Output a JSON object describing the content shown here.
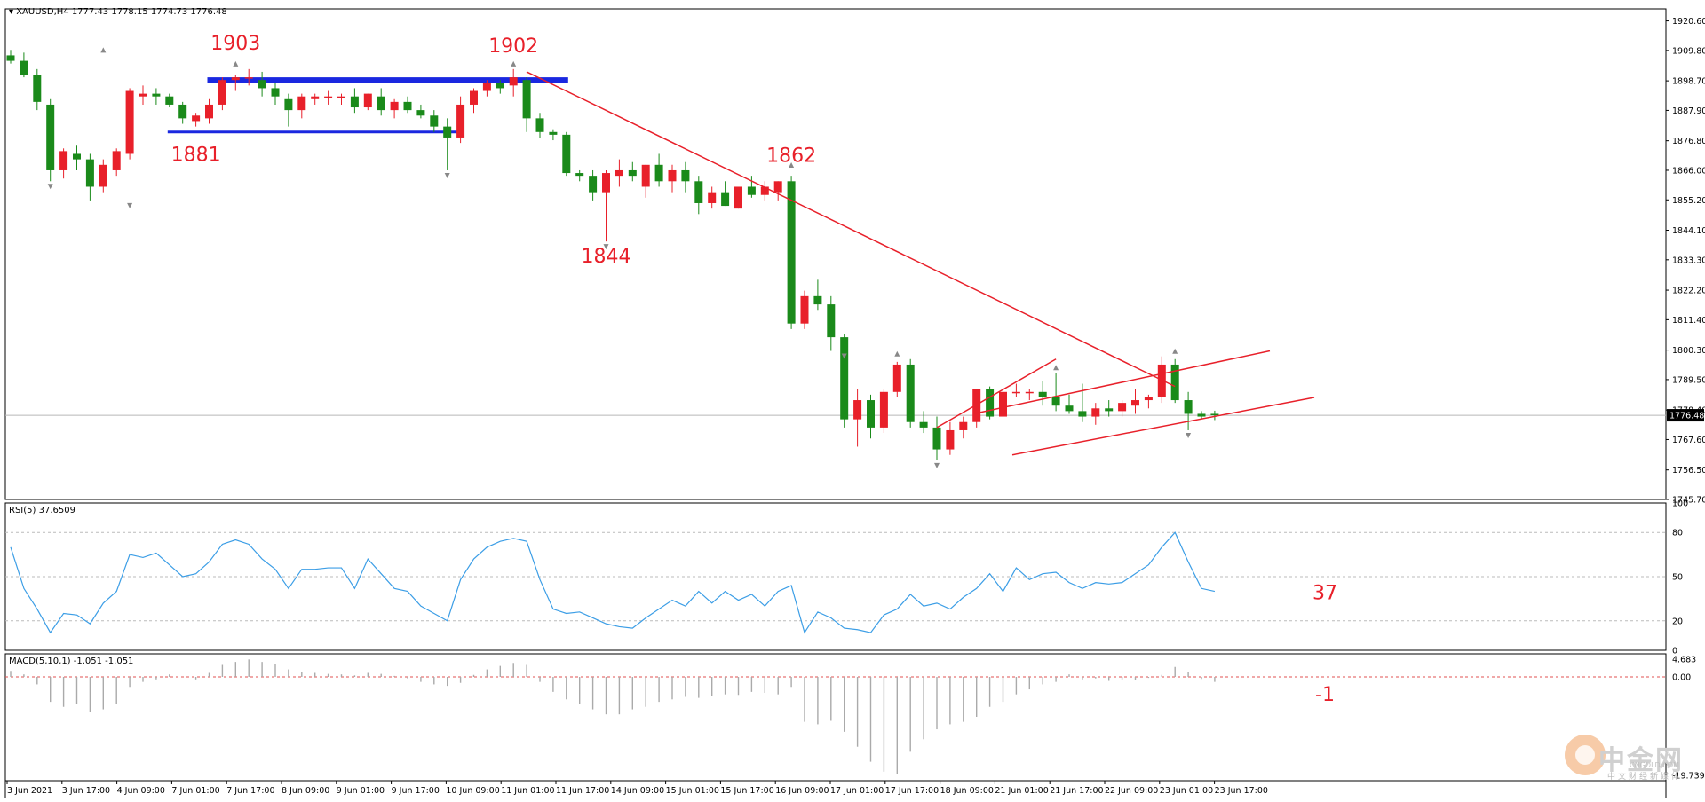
{
  "header": {
    "symbol": "XAUUSD,H4",
    "ohlc": "1777.43 1778.15 1774.73 1776.48"
  },
  "colors": {
    "bull": "#e8202a",
    "bear": "#1a8a1a",
    "resistance": "#1a28e0",
    "trend": "#e8202a",
    "indicator": "#3c9ee6",
    "annotation": "#e8202a"
  },
  "chart_data": [
    {
      "type": "candlestick",
      "title": "XAUUSD,H4",
      "ylim": [
        1745.7,
        1925
      ],
      "y_ticks": [
        "1920.60",
        "1909.80",
        "1898.70",
        "1887.90",
        "1876.80",
        "1866.00",
        "1855.20",
        "1844.10",
        "1833.30",
        "1822.20",
        "1811.40",
        "1800.30",
        "1789.50",
        "1778.40",
        "1767.60",
        "1756.50",
        "1745.70"
      ],
      "current_price_label": "1776.48",
      "current_price": 1776.48,
      "x_ticks": [
        "3 Jun 2021",
        "3 Jun 17:00",
        "4 Jun 09:00",
        "7 Jun 01:00",
        "7 Jun 17:00",
        "8 Jun 09:00",
        "9 Jun 01:00",
        "9 Jun 17:00",
        "10 Jun 09:00",
        "11 Jun 01:00",
        "11 Jun 17:00",
        "14 Jun 09:00",
        "15 Jun 01:00",
        "15 Jun 17:00",
        "16 Jun 09:00",
        "17 Jun 01:00",
        "17 Jun 17:00",
        "18 Jun 09:00",
        "21 Jun 01:00",
        "21 Jun 17:00",
        "22 Jun 09:00",
        "23 Jun 01:00",
        "23 Jun 17:00"
      ],
      "candles": [
        [
          1908,
          1910,
          1905,
          1906
        ],
        [
          1906,
          1909,
          1900,
          1901
        ],
        [
          1901,
          1903,
          1888,
          1891
        ],
        [
          1890,
          1892,
          1862,
          1866
        ],
        [
          1866,
          1874,
          1863,
          1873
        ],
        [
          1872,
          1875,
          1866,
          1870
        ],
        [
          1870,
          1872,
          1855,
          1860
        ],
        [
          1860,
          1870,
          1858,
          1868
        ],
        [
          1866,
          1874,
          1864,
          1873
        ],
        [
          1872,
          1896,
          1870,
          1895
        ],
        [
          1893,
          1897,
          1890,
          1894
        ],
        [
          1894,
          1896,
          1890,
          1893
        ],
        [
          1893,
          1894,
          1889,
          1890
        ],
        [
          1890,
          1891,
          1883,
          1885
        ],
        [
          1884,
          1887,
          1882,
          1886
        ],
        [
          1885,
          1892,
          1883,
          1890
        ],
        [
          1890,
          1900,
          1888,
          1899
        ],
        [
          1899,
          1901,
          1895,
          1900
        ],
        [
          1900,
          1903,
          1897,
          1900
        ],
        [
          1899,
          1902,
          1893,
          1896
        ],
        [
          1896,
          1898,
          1890,
          1893
        ],
        [
          1892,
          1894,
          1882,
          1888
        ],
        [
          1888,
          1894,
          1885,
          1893
        ],
        [
          1892,
          1894,
          1890,
          1893
        ],
        [
          1893,
          1895,
          1890,
          1893
        ],
        [
          1893,
          1894,
          1890,
          1893
        ],
        [
          1893,
          1896,
          1887,
          1889
        ],
        [
          1889,
          1894,
          1888,
          1894
        ],
        [
          1893,
          1896,
          1886,
          1888
        ],
        [
          1888,
          1892,
          1885,
          1891
        ],
        [
          1891,
          1893,
          1887,
          1888
        ],
        [
          1888,
          1890,
          1885,
          1886
        ],
        [
          1886,
          1888,
          1880,
          1882
        ],
        [
          1882,
          1885,
          1866,
          1878
        ],
        [
          1878,
          1893,
          1876,
          1890
        ],
        [
          1890,
          1896,
          1887,
          1895
        ],
        [
          1895,
          1899,
          1893,
          1898
        ],
        [
          1898,
          1899,
          1894,
          1896
        ],
        [
          1897,
          1903,
          1893,
          1900
        ],
        [
          1899,
          1900,
          1880,
          1885
        ],
        [
          1885,
          1887,
          1878,
          1880
        ],
        [
          1880,
          1881,
          1877,
          1879
        ],
        [
          1879,
          1880,
          1864,
          1865
        ],
        [
          1865,
          1866,
          1862,
          1864
        ],
        [
          1864,
          1866,
          1855,
          1858
        ],
        [
          1858,
          1866,
          1840,
          1865
        ],
        [
          1864,
          1870,
          1860,
          1866
        ],
        [
          1866,
          1869,
          1862,
          1864
        ],
        [
          1860,
          1868,
          1856,
          1868
        ],
        [
          1868,
          1872,
          1860,
          1862
        ],
        [
          1862,
          1868,
          1858,
          1866
        ],
        [
          1866,
          1869,
          1858,
          1862
        ],
        [
          1862,
          1864,
          1850,
          1854
        ],
        [
          1854,
          1860,
          1852,
          1858
        ],
        [
          1858,
          1862,
          1853,
          1853
        ],
        [
          1852,
          1860,
          1852,
          1860
        ],
        [
          1860,
          1864,
          1856,
          1857
        ],
        [
          1857,
          1862,
          1855,
          1860
        ],
        [
          1858,
          1862,
          1855,
          1862
        ],
        [
          1862,
          1864,
          1808,
          1810
        ],
        [
          1810,
          1822,
          1808,
          1820
        ],
        [
          1820,
          1826,
          1815,
          1817
        ],
        [
          1817,
          1820,
          1800,
          1805
        ],
        [
          1805,
          1806,
          1772,
          1775
        ],
        [
          1775,
          1786,
          1765,
          1782
        ],
        [
          1782,
          1784,
          1768,
          1772
        ],
        [
          1772,
          1786,
          1770,
          1785
        ],
        [
          1785,
          1796,
          1783,
          1795
        ],
        [
          1795,
          1797,
          1772,
          1774
        ],
        [
          1774,
          1778,
          1770,
          1772
        ],
        [
          1772,
          1776,
          1760,
          1764
        ],
        [
          1764,
          1774,
          1762,
          1771
        ],
        [
          1771,
          1776,
          1768,
          1774
        ],
        [
          1774,
          1786,
          1772,
          1786
        ],
        [
          1786,
          1787,
          1775,
          1776
        ],
        [
          1776,
          1787,
          1775,
          1785
        ],
        [
          1785,
          1788,
          1783,
          1785
        ],
        [
          1785,
          1786,
          1782,
          1785
        ],
        [
          1785,
          1789,
          1780,
          1783
        ],
        [
          1783,
          1792,
          1778,
          1780
        ],
        [
          1780,
          1784,
          1777,
          1778
        ],
        [
          1778,
          1788,
          1774,
          1776
        ],
        [
          1776,
          1781,
          1773,
          1779
        ],
        [
          1779,
          1782,
          1776,
          1778
        ],
        [
          1778,
          1782,
          1776,
          1781
        ],
        [
          1780,
          1786,
          1777,
          1782
        ],
        [
          1782,
          1784,
          1779,
          1783
        ],
        [
          1783,
          1798,
          1781,
          1795
        ],
        [
          1795,
          1797,
          1781,
          1782
        ],
        [
          1782,
          1785,
          1771,
          1777
        ],
        [
          1777,
          1778,
          1775,
          1776
        ],
        [
          1777,
          1778.15,
          1774.73,
          1776.48
        ]
      ],
      "resistance_zone": {
        "from": 1898,
        "to": 1900
      },
      "support_line": 1880,
      "annotations": [
        {
          "text": "1903",
          "value": 1903,
          "candle": 17
        },
        {
          "text": "1881",
          "value": 1881,
          "candle": 14
        },
        {
          "text": "1902",
          "value": 1902,
          "candle": 38
        },
        {
          "text": "1844",
          "value": 1844,
          "candle": 45
        },
        {
          "text": "1862",
          "value": 1862,
          "candle": 59
        }
      ]
    },
    {
      "type": "line",
      "title": "RSI(5) 37.6509",
      "ylim": [
        0,
        100
      ],
      "y_ticks": [
        "100",
        "80",
        "50",
        "20",
        "0"
      ],
      "levels": [
        80,
        50,
        20
      ],
      "annotation": "37",
      "values": [
        70,
        42,
        28,
        12,
        25,
        24,
        18,
        32,
        40,
        65,
        63,
        66,
        58,
        50,
        52,
        60,
        72,
        75,
        72,
        62,
        55,
        42,
        55,
        55,
        56,
        56,
        42,
        62,
        52,
        42,
        40,
        30,
        25,
        20,
        48,
        62,
        70,
        74,
        76,
        74,
        48,
        28,
        25,
        26,
        22,
        18,
        16,
        15,
        22,
        28,
        34,
        30,
        40,
        32,
        40,
        34,
        38,
        30,
        40,
        44,
        12,
        26,
        22,
        15,
        14,
        12,
        24,
        28,
        38,
        30,
        32,
        28,
        36,
        42,
        52,
        40,
        56,
        48,
        52,
        53,
        46,
        42,
        46,
        45,
        46,
        52,
        58,
        70,
        80,
        60,
        42,
        40
      ]
    },
    {
      "type": "bar",
      "title": "MACD(5,10,1) -1.051 -1.051",
      "ylim": [
        -19.739,
        4.683
      ],
      "y_ticks": [
        "4.683",
        "0.00",
        "-19.739"
      ],
      "annotation": "-1",
      "values": [
        1.2,
        0.5,
        -1.5,
        -5,
        -6,
        -5.5,
        -7,
        -6.5,
        -5.5,
        -2,
        -1,
        -0.5,
        0.5,
        0,
        -0.5,
        0.8,
        2.4,
        3,
        3.5,
        3,
        2.5,
        1.5,
        1,
        0.8,
        0.6,
        0.5,
        0.3,
        0.8,
        0.6,
        0.2,
        -0.3,
        -1,
        -1.5,
        -1.8,
        -1.2,
        0.4,
        1.5,
        2.2,
        2.8,
        2.4,
        -1,
        -3,
        -4.5,
        -5.5,
        -6.5,
        -7.5,
        -7.5,
        -6.5,
        -6,
        -5,
        -4.5,
        -4,
        -4.2,
        -3.8,
        -3.5,
        -3.6,
        -3,
        -3.2,
        -3.5,
        -2,
        -9,
        -9.5,
        -8.8,
        -11,
        -14,
        -17,
        -19,
        -19.5,
        -15,
        -12.5,
        -10.5,
        -9.5,
        -9,
        -8,
        -6,
        -5,
        -3.5,
        -2.5,
        -1.5,
        -1,
        0.5,
        -0.5,
        -0.3,
        -0.8,
        -0.5,
        -0.6,
        -0.2,
        0.4,
        2,
        1,
        -0.4,
        -1
      ]
    }
  ]
}
